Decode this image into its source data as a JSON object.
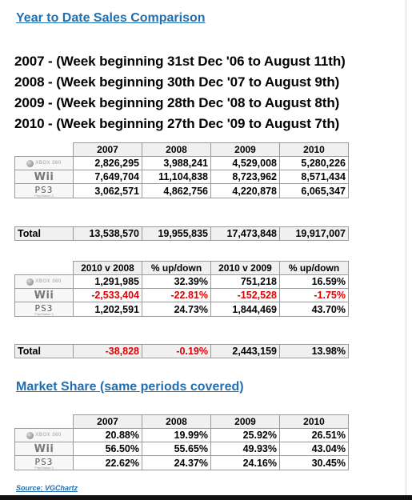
{
  "title": "Year to Date Sales Comparison",
  "periods": [
    "2007  -  (Week beginning 31st Dec '06 to August 11th)",
    "2008  -  (Week beginning 30th Dec '07 to August 9th)",
    "2009  -  (Week beginning 28th Dec '08 to August 8th)",
    "2010  -  (Week beginning 27th Dec '09 to August 7th)"
  ],
  "platforms": [
    {
      "icon": "xbox-360-logo",
      "label": "XBOX 360"
    },
    {
      "icon": "wii-logo",
      "label": "Wii"
    },
    {
      "icon": "ps3-logo",
      "label": "PS3",
      "sub": "PlayStation 3"
    }
  ],
  "sales": {
    "headers": [
      "2007",
      "2008",
      "2009",
      "2010"
    ],
    "rows": [
      [
        "2,826,295",
        "3,988,241",
        "4,529,008",
        "5,280,226"
      ],
      [
        "7,649,704",
        "11,104,838",
        "8,723,962",
        "8,571,434"
      ],
      [
        "3,062,571",
        "4,862,756",
        "4,220,878",
        "6,065,347"
      ]
    ],
    "total_label": "Total",
    "totals": [
      "13,538,570",
      "19,955,835",
      "17,473,848",
      "19,917,007"
    ]
  },
  "changes": {
    "headers": [
      "2010 v 2008",
      "% up/down",
      "2010 v 2009",
      "% up/down"
    ],
    "rows": [
      [
        "1,291,985",
        "32.39%",
        "751,218",
        "16.59%"
      ],
      [
        "-2,533,404",
        "-22.81%",
        "-152,528",
        "-1.75%"
      ],
      [
        "1,202,591",
        "24.73%",
        "1,844,469",
        "43.70%"
      ]
    ],
    "total_label": "Total",
    "totals": [
      "-38,828",
      "-0.19%",
      "2,443,159",
      "13.98%"
    ]
  },
  "share_title": "Market Share (same periods covered)",
  "share": {
    "headers": [
      "2007",
      "2008",
      "2009",
      "2010"
    ],
    "rows": [
      [
        "20.88%",
        "19.99%",
        "25.92%",
        "26.51%"
      ],
      [
        "56.50%",
        "55.65%",
        "49.93%",
        "43.04%"
      ],
      [
        "22.62%",
        "24.37%",
        "24.16%",
        "30.45%"
      ]
    ]
  },
  "source": "Source: VGChartz",
  "colors": {
    "heading": "#1f6fb2",
    "negative": "#e00000"
  }
}
